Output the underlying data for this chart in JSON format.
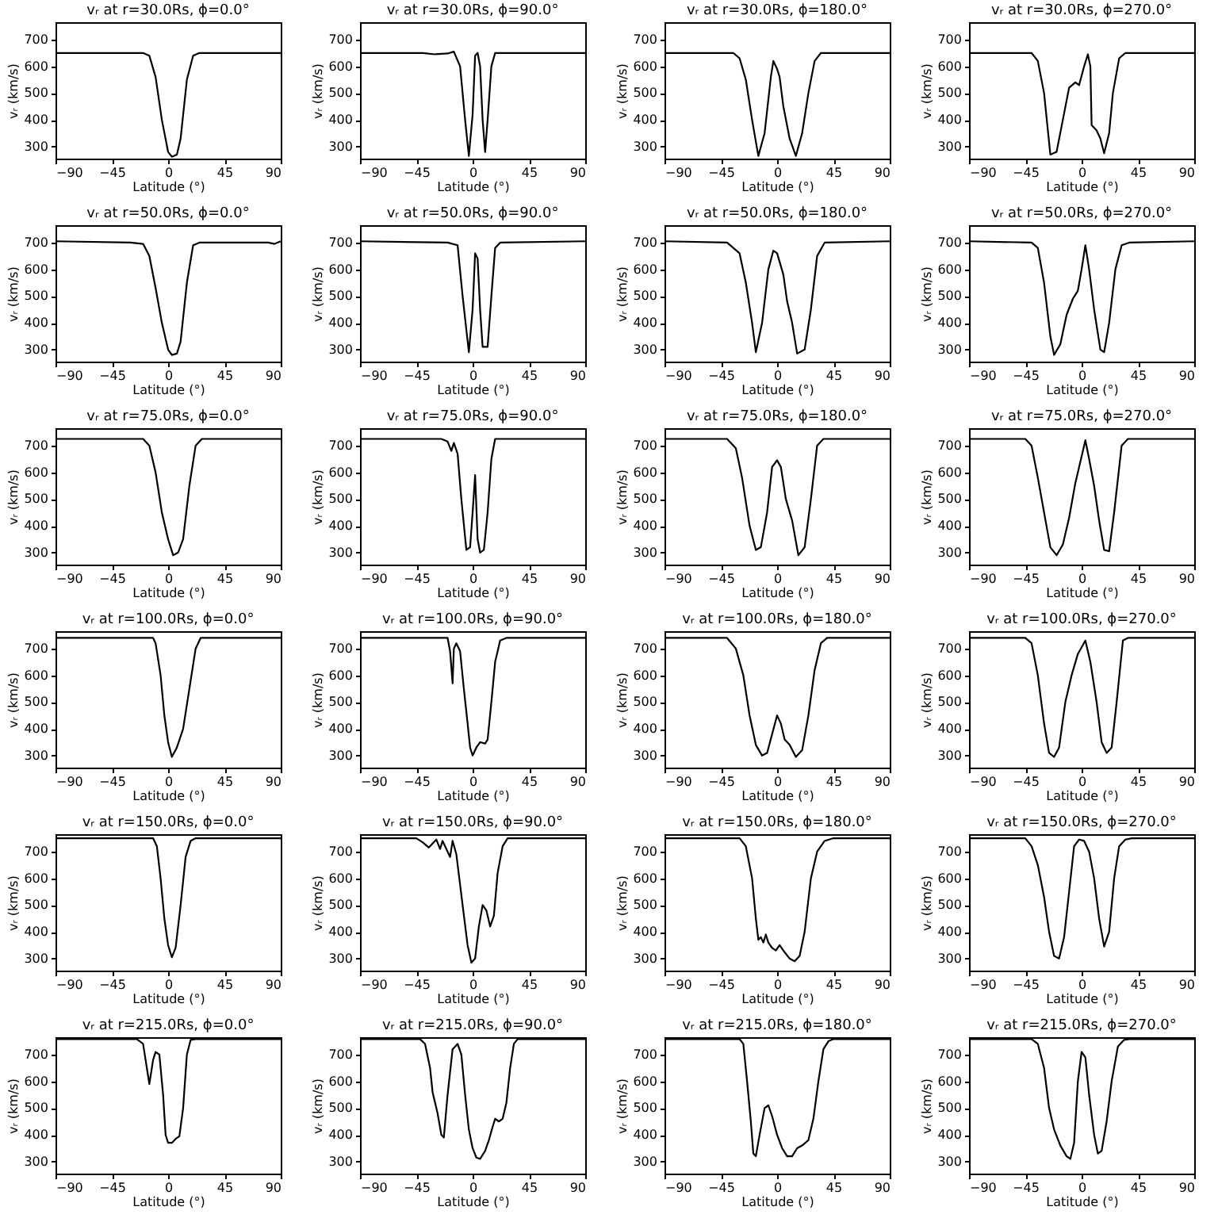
{
  "chart_data": [
    {
      "type": "line",
      "title": "vᵣ at r=30.0Rs, ϕ=0.0°",
      "xlabel": "Latitude (°)",
      "ylabel": "vᵣ (km/s)",
      "color": "#000000",
      "xlim": [
        -90,
        90
      ],
      "xticks": [
        -90,
        -45,
        0,
        45,
        90
      ],
      "ylim": [
        255,
        765
      ],
      "yticks": [
        300,
        400,
        500,
        600,
        700
      ],
      "x": [
        -90,
        -20,
        -15,
        -10,
        -5,
        0,
        3,
        7,
        10,
        15,
        20,
        25,
        90
      ],
      "values": [
        650,
        650,
        640,
        560,
        400,
        280,
        262,
        270,
        330,
        550,
        640,
        650,
        650
      ]
    },
    {
      "type": "line",
      "title": "vᵣ at r=30.0Rs, ϕ=90.0°",
      "xlabel": "Latitude (°)",
      "ylabel": "vᵣ (km/s)",
      "color": "#000000",
      "xlim": [
        -90,
        90
      ],
      "xticks": [
        -90,
        -45,
        0,
        45,
        90
      ],
      "ylim": [
        255,
        765
      ],
      "yticks": [
        300,
        400,
        500,
        600,
        700
      ],
      "x": [
        -90,
        -40,
        -30,
        -20,
        -15,
        -10,
        -6,
        -3,
        0,
        2,
        4,
        6,
        8,
        10,
        12,
        15,
        18,
        90
      ],
      "values": [
        650,
        650,
        645,
        648,
        655,
        600,
        400,
        265,
        420,
        640,
        650,
        600,
        400,
        280,
        400,
        600,
        650,
        650
      ]
    },
    {
      "type": "line",
      "title": "vᵣ at r=30.0Rs, ϕ=180.0°",
      "xlabel": "Latitude (°)",
      "ylabel": "vᵣ (km/s)",
      "color": "#000000",
      "xlim": [
        -90,
        90
      ],
      "xticks": [
        -90,
        -45,
        0,
        45,
        90
      ],
      "ylim": [
        255,
        765
      ],
      "yticks": [
        300,
        400,
        500,
        600,
        700
      ],
      "x": [
        -90,
        -35,
        -30,
        -25,
        -20,
        -15,
        -10,
        -5,
        -3,
        0,
        2,
        5,
        10,
        15,
        20,
        25,
        30,
        35,
        90
      ],
      "values": [
        650,
        650,
        630,
        550,
        400,
        265,
        350,
        560,
        620,
        590,
        560,
        450,
        330,
        265,
        350,
        500,
        620,
        650,
        650
      ]
    },
    {
      "type": "line",
      "title": "vᵣ at r=30.0Rs, ϕ=270.0°",
      "xlabel": "Latitude (°)",
      "ylabel": "vᵣ (km/s)",
      "color": "#000000",
      "xlim": [
        -90,
        90
      ],
      "xticks": [
        -90,
        -45,
        0,
        45,
        90
      ],
      "ylim": [
        255,
        765
      ],
      "yticks": [
        300,
        400,
        500,
        600,
        700
      ],
      "x": [
        -90,
        -40,
        -35,
        -30,
        -25,
        -20,
        -15,
        -10,
        -5,
        -2,
        2,
        5,
        7,
        8,
        12,
        15,
        18,
        22,
        25,
        30,
        35,
        90
      ],
      "values": [
        650,
        650,
        620,
        500,
        270,
        280,
        400,
        520,
        540,
        530,
        600,
        645,
        600,
        380,
        360,
        330,
        275,
        350,
        500,
        630,
        650,
        650
      ]
    },
    {
      "type": "line",
      "title": "vᵣ at r=50.0Rs, ϕ=0.0°",
      "xlabel": "Latitude (°)",
      "ylabel": "vᵣ (km/s)",
      "color": "#000000",
      "xlim": [
        -90,
        90
      ],
      "xticks": [
        -90,
        -45,
        0,
        45,
        90
      ],
      "ylim": [
        255,
        765
      ],
      "yticks": [
        300,
        400,
        500,
        600,
        700
      ],
      "x": [
        -90,
        -30,
        -20,
        -15,
        -10,
        -5,
        0,
        3,
        7,
        10,
        15,
        20,
        25,
        80,
        85,
        90
      ],
      "values": [
        705,
        700,
        695,
        650,
        530,
        400,
        300,
        280,
        285,
        330,
        550,
        690,
        700,
        700,
        695,
        705
      ]
    },
    {
      "type": "line",
      "title": "vᵣ at r=50.0Rs, ϕ=90.0°",
      "xlabel": "Latitude (°)",
      "ylabel": "vᵣ (km/s)",
      "color": "#000000",
      "xlim": [
        -90,
        90
      ],
      "xticks": [
        -90,
        -45,
        0,
        45,
        90
      ],
      "ylim": [
        255,
        765
      ],
      "yticks": [
        300,
        400,
        500,
        600,
        700
      ],
      "x": [
        -90,
        -20,
        -12,
        -8,
        -3,
        0,
        2,
        4,
        6,
        8,
        12,
        15,
        18,
        22,
        90
      ],
      "values": [
        705,
        700,
        690,
        500,
        290,
        450,
        660,
        640,
        450,
        310,
        310,
        500,
        680,
        700,
        705
      ]
    },
    {
      "type": "line",
      "title": "vᵣ at r=50.0Rs, ϕ=180.0°",
      "xlabel": "Latitude (°)",
      "ylabel": "vᵣ (km/s)",
      "color": "#000000",
      "xlim": [
        -90,
        90
      ],
      "xticks": [
        -90,
        -45,
        0,
        45,
        90
      ],
      "ylim": [
        255,
        765
      ],
      "yticks": [
        300,
        400,
        500,
        600,
        700
      ],
      "x": [
        -90,
        -40,
        -30,
        -25,
        -20,
        -17,
        -12,
        -7,
        -3,
        0,
        5,
        8,
        12,
        16,
        22,
        27,
        32,
        38,
        90
      ],
      "values": [
        705,
        700,
        660,
        550,
        400,
        290,
        400,
        600,
        670,
        660,
        580,
        480,
        400,
        285,
        300,
        450,
        650,
        700,
        705
      ]
    },
    {
      "type": "line",
      "title": "vᵣ at r=50.0Rs, ϕ=270.0°",
      "xlabel": "Latitude (°)",
      "ylabel": "vᵣ (km/s)",
      "color": "#000000",
      "xlim": [
        -90,
        90
      ],
      "xticks": [
        -90,
        -45,
        0,
        45,
        90
      ],
      "ylim": [
        255,
        765
      ],
      "yticks": [
        300,
        400,
        500,
        600,
        700
      ],
      "x": [
        -90,
        -40,
        -35,
        -30,
        -25,
        -22,
        -17,
        -12,
        -7,
        -3,
        0,
        3,
        6,
        10,
        15,
        18,
        22,
        27,
        32,
        38,
        90
      ],
      "values": [
        705,
        700,
        680,
        550,
        350,
        280,
        320,
        430,
        490,
        520,
        600,
        690,
        600,
        450,
        300,
        290,
        400,
        600,
        690,
        700,
        705
      ]
    },
    {
      "type": "line",
      "title": "vᵣ at r=75.0Rs, ϕ=0.0°",
      "xlabel": "Latitude (°)",
      "ylabel": "vᵣ (km/s)",
      "color": "#000000",
      "xlim": [
        -90,
        90
      ],
      "xticks": [
        -90,
        -45,
        0,
        45,
        90
      ],
      "ylim": [
        255,
        765
      ],
      "yticks": [
        300,
        400,
        500,
        600,
        700
      ],
      "x": [
        -90,
        -20,
        -15,
        -10,
        -5,
        0,
        4,
        8,
        12,
        17,
        22,
        27,
        90
      ],
      "values": [
        725,
        725,
        700,
        600,
        450,
        350,
        290,
        300,
        350,
        550,
        700,
        725,
        725
      ]
    },
    {
      "type": "line",
      "title": "vᵣ at r=75.0Rs, ϕ=90.0°",
      "xlabel": "Latitude (°)",
      "ylabel": "vᵣ (km/s)",
      "color": "#000000",
      "xlim": [
        -90,
        90
      ],
      "xticks": [
        -90,
        -45,
        0,
        45,
        90
      ],
      "ylim": [
        255,
        765
      ],
      "yticks": [
        300,
        400,
        500,
        600,
        700
      ],
      "x": [
        -90,
        -25,
        -20,
        -17,
        -15,
        -12,
        -9,
        -5,
        -2,
        0,
        2,
        4,
        6,
        9,
        12,
        15,
        18,
        90
      ],
      "values": [
        725,
        725,
        715,
        680,
        710,
        670,
        500,
        310,
        320,
        450,
        590,
        350,
        300,
        310,
        450,
        650,
        725,
        725
      ]
    },
    {
      "type": "line",
      "title": "vᵣ at r=75.0Rs, ϕ=180.0°",
      "xlabel": "Latitude (°)",
      "ylabel": "vᵣ (km/s)",
      "color": "#000000",
      "xlim": [
        -90,
        90
      ],
      "xticks": [
        -90,
        -45,
        0,
        45,
        90
      ],
      "ylim": [
        255,
        765
      ],
      "yticks": [
        300,
        400,
        500,
        600,
        700
      ],
      "x": [
        -90,
        -40,
        -33,
        -28,
        -22,
        -17,
        -13,
        -8,
        -4,
        0,
        3,
        7,
        12,
        17,
        22,
        27,
        32,
        37,
        90
      ],
      "values": [
        725,
        725,
        690,
        580,
        400,
        310,
        320,
        450,
        620,
        645,
        620,
        500,
        420,
        290,
        320,
        500,
        700,
        725,
        725
      ]
    },
    {
      "type": "line",
      "title": "vᵣ at r=75.0Rs, ϕ=270.0°",
      "xlabel": "Latitude (°)",
      "ylabel": "vᵣ (km/s)",
      "color": "#000000",
      "xlim": [
        -90,
        90
      ],
      "xticks": [
        -90,
        -45,
        0,
        45,
        90
      ],
      "ylim": [
        255,
        765
      ],
      "yticks": [
        300,
        400,
        500,
        600,
        700
      ],
      "x": [
        -90,
        -45,
        -40,
        -35,
        -30,
        -25,
        -20,
        -15,
        -10,
        -5,
        0,
        3,
        6,
        10,
        14,
        18,
        22,
        26,
        32,
        37,
        90
      ],
      "values": [
        725,
        725,
        700,
        580,
        450,
        320,
        290,
        330,
        430,
        560,
        660,
        720,
        650,
        550,
        420,
        310,
        305,
        450,
        700,
        725,
        725
      ]
    },
    {
      "type": "line",
      "title": "vᵣ at r=100.0Rs, ϕ=0.0°",
      "xlabel": "Latitude (°)",
      "ylabel": "vᵣ (km/s)",
      "color": "#000000",
      "xlim": [
        -90,
        90
      ],
      "xticks": [
        -90,
        -45,
        0,
        45,
        90
      ],
      "ylim": [
        255,
        765
      ],
      "yticks": [
        300,
        400,
        500,
        600,
        700
      ],
      "x": [
        -90,
        -12,
        -10,
        -6,
        -3,
        0,
        3,
        7,
        12,
        17,
        22,
        26,
        90
      ],
      "values": [
        740,
        740,
        720,
        600,
        450,
        350,
        295,
        330,
        400,
        550,
        700,
        740,
        740
      ]
    },
    {
      "type": "line",
      "title": "vᵣ at r=100.0Rs, ϕ=90.0°",
      "xlabel": "Latitude (°)",
      "ylabel": "vᵣ (km/s)",
      "color": "#000000",
      "xlim": [
        -90,
        90
      ],
      "xticks": [
        -90,
        -45,
        0,
        45,
        90
      ],
      "ylim": [
        255,
        765
      ],
      "yticks": [
        300,
        400,
        500,
        600,
        700
      ],
      "x": [
        -90,
        -20,
        -18,
        -17,
        -16,
        -15,
        -13,
        -10,
        -7,
        -4,
        -2,
        0,
        3,
        6,
        10,
        12,
        15,
        18,
        22,
        27,
        90
      ],
      "values": [
        740,
        740,
        690,
        630,
        570,
        700,
        720,
        690,
        550,
        420,
        330,
        300,
        330,
        350,
        345,
        360,
        500,
        650,
        730,
        740,
        740
      ]
    },
    {
      "type": "line",
      "title": "vᵣ at r=100.0Rs, ϕ=180.0°",
      "xlabel": "Latitude (°)",
      "ylabel": "vᵣ (km/s)",
      "color": "#000000",
      "xlim": [
        -90,
        90
      ],
      "xticks": [
        -90,
        -45,
        0,
        45,
        90
      ],
      "ylim": [
        255,
        765
      ],
      "yticks": [
        300,
        400,
        500,
        600,
        700
      ],
      "x": [
        -90,
        -40,
        -33,
        -27,
        -22,
        -17,
        -12,
        -8,
        -4,
        0,
        3,
        6,
        10,
        15,
        20,
        25,
        30,
        35,
        40,
        90
      ],
      "values": [
        740,
        740,
        700,
        600,
        450,
        340,
        300,
        310,
        380,
        450,
        420,
        360,
        340,
        295,
        320,
        450,
        620,
        720,
        740,
        740
      ]
    },
    {
      "type": "line",
      "title": "vᵣ at r=100.0Rs, ϕ=270.0°",
      "xlabel": "Latitude (°)",
      "ylabel": "vᵣ (km/s)",
      "color": "#000000",
      "xlim": [
        -90,
        90
      ],
      "xticks": [
        -90,
        -45,
        0,
        45,
        90
      ],
      "ylim": [
        255,
        765
      ],
      "yticks": [
        300,
        400,
        500,
        600,
        700
      ],
      "x": [
        -90,
        -45,
        -40,
        -35,
        -30,
        -26,
        -22,
        -18,
        -13,
        -8,
        -3,
        3,
        7,
        12,
        16,
        20,
        24,
        28,
        33,
        37,
        90
      ],
      "values": [
        740,
        740,
        720,
        600,
        420,
        310,
        295,
        330,
        500,
        600,
        680,
        730,
        650,
        500,
        350,
        310,
        330,
        500,
        730,
        740,
        740
      ]
    },
    {
      "type": "line",
      "title": "vᵣ at r=150.0Rs, ϕ=0.0°",
      "xlabel": "Latitude (°)",
      "ylabel": "vᵣ (km/s)",
      "color": "#000000",
      "xlim": [
        -90,
        90
      ],
      "xticks": [
        -90,
        -45,
        0,
        45,
        90
      ],
      "ylim": [
        255,
        765
      ],
      "yticks": [
        300,
        400,
        500,
        600,
        700
      ],
      "x": [
        -90,
        -12,
        -9,
        -6,
        -3,
        0,
        3,
        6,
        10,
        14,
        18,
        22,
        90
      ],
      "values": [
        750,
        750,
        720,
        600,
        450,
        350,
        305,
        340,
        500,
        680,
        740,
        750,
        750
      ]
    },
    {
      "type": "line",
      "title": "vᵣ at r=150.0Rs, ϕ=90.0°",
      "xlabel": "Latitude (°)",
      "ylabel": "vᵣ (km/s)",
      "color": "#000000",
      "xlim": [
        -90,
        90
      ],
      "xticks": [
        -90,
        -45,
        0,
        45,
        90
      ],
      "ylim": [
        255,
        765
      ],
      "yticks": [
        300,
        400,
        500,
        600,
        700
      ],
      "x": [
        -90,
        -45,
        -40,
        -35,
        -32,
        -29,
        -26,
        -24,
        -20,
        -18,
        -16,
        -13,
        -8,
        -4,
        -1,
        2,
        5,
        8,
        11,
        14,
        17,
        20,
        24,
        28,
        90
      ],
      "values": [
        750,
        750,
        735,
        715,
        730,
        745,
        710,
        740,
        700,
        680,
        740,
        690,
        500,
        350,
        285,
        300,
        420,
        500,
        480,
        420,
        460,
        620,
        720,
        750,
        750
      ]
    },
    {
      "type": "line",
      "title": "vᵣ at r=150.0Rs, ϕ=180.0°",
      "xlabel": "Latitude (°)",
      "ylabel": "vᵣ (km/s)",
      "color": "#000000",
      "xlim": [
        -90,
        90
      ],
      "xticks": [
        -90,
        -45,
        0,
        45,
        90
      ],
      "ylim": [
        255,
        765
      ],
      "yticks": [
        300,
        400,
        500,
        600,
        700
      ],
      "x": [
        -90,
        -30,
        -25,
        -20,
        -17,
        -15,
        -13,
        -11,
        -9,
        -7,
        -4,
        -1,
        2,
        5,
        10,
        14,
        18,
        22,
        27,
        32,
        38,
        45,
        90
      ],
      "values": [
        750,
        750,
        720,
        600,
        450,
        370,
        380,
        360,
        390,
        360,
        340,
        330,
        350,
        330,
        300,
        290,
        310,
        400,
        600,
        700,
        740,
        750,
        750
      ]
    },
    {
      "type": "line",
      "title": "vᵣ at r=150.0Rs, ϕ=270.0°",
      "xlabel": "Latitude (°)",
      "ylabel": "vᵣ (km/s)",
      "color": "#000000",
      "xlim": [
        -90,
        90
      ],
      "xticks": [
        -90,
        -45,
        0,
        45,
        90
      ],
      "ylim": [
        255,
        765
      ],
      "yticks": [
        300,
        400,
        500,
        600,
        700
      ],
      "x": [
        -90,
        -45,
        -40,
        -35,
        -30,
        -26,
        -22,
        -18,
        -14,
        -10,
        -6,
        -2,
        2,
        6,
        10,
        14,
        18,
        22,
        26,
        30,
        35,
        40,
        90
      ],
      "values": [
        750,
        750,
        720,
        650,
        530,
        400,
        310,
        300,
        380,
        550,
        720,
        745,
        740,
        700,
        600,
        450,
        345,
        400,
        600,
        720,
        745,
        750,
        750
      ]
    },
    {
      "type": "line",
      "title": "vᵣ at r=215.0Rs, ϕ=0.0°",
      "xlabel": "Latitude (°)",
      "ylabel": "vᵣ (km/s)",
      "color": "#000000",
      "xlim": [
        -90,
        90
      ],
      "xticks": [
        -90,
        -45,
        0,
        45,
        90
      ],
      "ylim": [
        255,
        765
      ],
      "yticks": [
        300,
        400,
        500,
        600,
        700
      ],
      "x": [
        -90,
        -25,
        -20,
        -17,
        -15,
        -12,
        -10,
        -7,
        -4,
        -2,
        0,
        3,
        6,
        9,
        12,
        15,
        18,
        22,
        90
      ],
      "values": [
        758,
        758,
        740,
        650,
        590,
        680,
        710,
        700,
        550,
        400,
        370,
        370,
        385,
        395,
        500,
        700,
        755,
        758,
        758
      ]
    },
    {
      "type": "line",
      "title": "vᵣ at r=215.0Rs, ϕ=90.0°",
      "xlabel": "Latitude (°)",
      "ylabel": "vᵣ (km/s)",
      "color": "#000000",
      "xlim": [
        -90,
        90
      ],
      "xticks": [
        -90,
        -45,
        0,
        45,
        90
      ],
      "ylim": [
        255,
        765
      ],
      "yticks": [
        300,
        400,
        500,
        600,
        700
      ],
      "x": [
        -90,
        -42,
        -38,
        -34,
        -32,
        -28,
        -25,
        -23,
        -20,
        -16,
        -12,
        -9,
        -6,
        -3,
        0,
        3,
        6,
        10,
        13,
        16,
        18,
        21,
        24,
        27,
        30,
        33,
        36,
        90
      ],
      "values": [
        758,
        758,
        740,
        650,
        560,
        480,
        400,
        390,
        550,
        720,
        740,
        700,
        550,
        420,
        350,
        315,
        310,
        340,
        380,
        430,
        460,
        450,
        460,
        520,
        650,
        740,
        758,
        758
      ]
    },
    {
      "type": "line",
      "title": "vᵣ at r=215.0Rs, ϕ=180.0°",
      "xlabel": "Latitude (°)",
      "ylabel": "vᵣ (km/s)",
      "color": "#000000",
      "xlim": [
        -90,
        90
      ],
      "xticks": [
        -90,
        -45,
        0,
        45,
        90
      ],
      "ylim": [
        255,
        765
      ],
      "yticks": [
        300,
        400,
        500,
        600,
        700
      ],
      "x": [
        -90,
        -30,
        -27,
        -24,
        -21,
        -19,
        -17,
        -14,
        -10,
        -7,
        -4,
        0,
        4,
        8,
        12,
        16,
        20,
        25,
        29,
        33,
        37,
        41,
        45,
        90
      ],
      "values": [
        758,
        758,
        740,
        600,
        450,
        330,
        320,
        400,
        500,
        510,
        470,
        400,
        350,
        320,
        320,
        350,
        360,
        380,
        460,
        600,
        720,
        750,
        758,
        758
      ]
    },
    {
      "type": "line",
      "title": "vᵣ at r=215.0Rs, ϕ=270.0°",
      "xlabel": "Latitude (°)",
      "ylabel": "vᵣ (km/s)",
      "color": "#000000",
      "xlim": [
        -90,
        90
      ],
      "xticks": [
        -90,
        -45,
        0,
        45,
        90
      ],
      "ylim": [
        255,
        765
      ],
      "yticks": [
        300,
        400,
        500,
        600,
        700
      ],
      "x": [
        -90,
        -40,
        -35,
        -30,
        -26,
        -22,
        -17,
        -12,
        -9,
        -6,
        -3,
        0,
        3,
        6,
        10,
        13,
        16,
        20,
        24,
        29,
        34,
        38,
        90
      ],
      "values": [
        758,
        758,
        740,
        650,
        500,
        420,
        360,
        320,
        310,
        370,
        600,
        710,
        690,
        550,
        400,
        330,
        340,
        450,
        600,
        730,
        755,
        758,
        758
      ]
    }
  ]
}
